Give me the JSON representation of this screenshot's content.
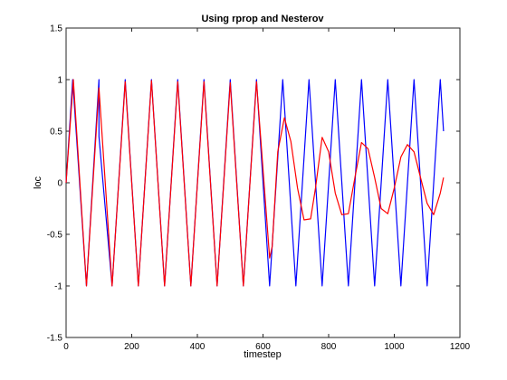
{
  "chart_data": {
    "type": "line",
    "title": "Using rprop and Nesterov",
    "xlabel": "timestep",
    "ylabel": "loc",
    "xlim": [
      0,
      1200
    ],
    "ylim": [
      -1.5,
      1.5
    ],
    "xticks": [
      "0",
      "200",
      "400",
      "600",
      "800",
      "1000",
      "1200"
    ],
    "yticks": [
      "-1.5",
      "-1",
      "-0.5",
      "0",
      "0.5",
      "1",
      "1.5"
    ],
    "grid": false,
    "series": [
      {
        "color": "#0000ff",
        "x": [
          0,
          20,
          62,
          100,
          100,
          140,
          180,
          220,
          260,
          300,
          340,
          380,
          420,
          460,
          500,
          540,
          580,
          620,
          660,
          700,
          740,
          780,
          820,
          860,
          900,
          940,
          980,
          1020,
          1060,
          1100,
          1140,
          1150
        ],
        "y": [
          0,
          1,
          -1,
          1,
          0.45,
          -1,
          1,
          -1,
          1,
          -1,
          1,
          -1,
          1,
          -1,
          1,
          -1,
          1,
          -1,
          1,
          -1,
          1,
          -1,
          1,
          -1,
          1,
          -1,
          1,
          -1,
          1,
          -1,
          1,
          0.5
        ]
      },
      {
        "color": "#ff0000",
        "x": [
          0,
          22,
          62,
          100,
          140,
          180,
          220,
          260,
          300,
          340,
          380,
          420,
          460,
          500,
          540,
          580,
          620,
          628,
          645,
          665,
          685,
          705,
          725,
          745,
          760,
          780,
          800,
          820,
          840,
          860,
          880,
          900,
          920,
          940,
          960,
          980,
          1000,
          1020,
          1040,
          1060,
          1080,
          1100,
          1120,
          1140,
          1150
        ],
        "y": [
          0,
          1,
          -1,
          0.92,
          -1,
          0.98,
          -1,
          0.99,
          -1,
          0.98,
          -1,
          0.98,
          -1,
          0.97,
          -1,
          0.98,
          -0.73,
          -0.62,
          0.3,
          0.63,
          0.4,
          -0.05,
          -0.36,
          -0.35,
          -0.05,
          0.44,
          0.3,
          -0.1,
          -0.31,
          -0.3,
          0.05,
          0.39,
          0.33,
          0.05,
          -0.25,
          -0.3,
          -0.05,
          0.25,
          0.37,
          0.3,
          0.05,
          -0.2,
          -0.31,
          -0.1,
          0.05
        ]
      }
    ]
  }
}
